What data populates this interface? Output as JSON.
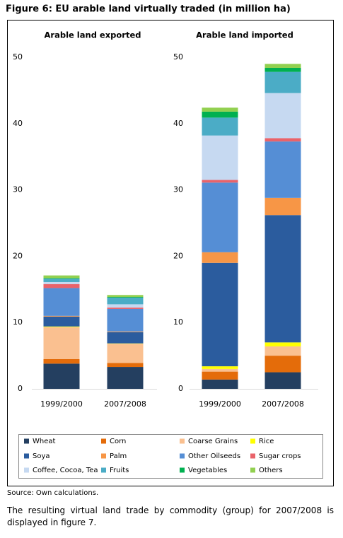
{
  "figure_title": "Figure 6:  EU arable land virtually traded (in million ha)",
  "source": "Source: Own calculations.",
  "body_text": "The resulting virtual land trade by commodity (group) for 2007/2008 is displayed in figure 7.",
  "chart_data": [
    {
      "type": "bar",
      "stacked": true,
      "title": "Arable land exported",
      "categories": [
        "1999/2000",
        "2007/2008"
      ],
      "ylim": [
        0,
        50
      ],
      "yticks": [
        0,
        10,
        20,
        30,
        40,
        50
      ],
      "series": [
        {
          "name": "Wheat",
          "color": "#243f60",
          "values": [
            3.8,
            3.3
          ]
        },
        {
          "name": "Corn",
          "color": "#e46c0a",
          "values": [
            0.7,
            0.6
          ]
        },
        {
          "name": "Coarse Grains",
          "color": "#fac090",
          "values": [
            4.8,
            2.9
          ]
        },
        {
          "name": "Rice",
          "color": "#ffff00",
          "values": [
            0.1,
            0.05
          ]
        },
        {
          "name": "Soya",
          "color": "#2b5c9e",
          "values": [
            1.5,
            1.7
          ]
        },
        {
          "name": "Palm",
          "color": "#f79646",
          "values": [
            0.1,
            0.1
          ]
        },
        {
          "name": "Other Oilseeds",
          "color": "#558ed5",
          "values": [
            4.2,
            3.4
          ]
        },
        {
          "name": "Sugar crops",
          "color": "#e9636a",
          "values": [
            0.6,
            0.2
          ]
        },
        {
          "name": "Coffee, Cocoa, Tea",
          "color": "#c6d9f1",
          "values": [
            0.3,
            0.5
          ]
        },
        {
          "name": "Fruits",
          "color": "#4bacc6",
          "values": [
            0.5,
            1.0
          ]
        },
        {
          "name": "Vegetables",
          "color": "#00b050",
          "values": [
            0.1,
            0.1
          ]
        },
        {
          "name": "Others",
          "color": "#92d050",
          "values": [
            0.4,
            0.3
          ]
        }
      ]
    },
    {
      "type": "bar",
      "stacked": true,
      "title": "Arable land imported",
      "categories": [
        "1999/2000",
        "2007/2008"
      ],
      "ylim": [
        0,
        50
      ],
      "yticks": [
        0,
        10,
        20,
        30,
        40,
        50
      ],
      "series": [
        {
          "name": "Wheat",
          "color": "#243f60",
          "values": [
            1.4,
            2.5
          ]
        },
        {
          "name": "Corn",
          "color": "#e46c0a",
          "values": [
            1.2,
            2.5
          ]
        },
        {
          "name": "Coarse Grains",
          "color": "#fac090",
          "values": [
            0.4,
            1.4
          ]
        },
        {
          "name": "Rice",
          "color": "#ffff00",
          "values": [
            0.4,
            0.6
          ]
        },
        {
          "name": "Soya",
          "color": "#2b5c9e",
          "values": [
            15.6,
            19.2
          ]
        },
        {
          "name": "Palm",
          "color": "#f79646",
          "values": [
            1.6,
            2.6
          ]
        },
        {
          "name": "Other Oilseeds",
          "color": "#558ed5",
          "values": [
            10.5,
            8.5
          ]
        },
        {
          "name": "Sugar crops",
          "color": "#e9636a",
          "values": [
            0.4,
            0.5
          ]
        },
        {
          "name": "Coffee, Cocoa, Tea",
          "color": "#c6d9f1",
          "values": [
            6.7,
            6.8
          ]
        },
        {
          "name": "Fruits",
          "color": "#4bacc6",
          "values": [
            2.7,
            3.2
          ]
        },
        {
          "name": "Vegetables",
          "color": "#00b050",
          "values": [
            0.9,
            0.6
          ]
        },
        {
          "name": "Others",
          "color": "#92d050",
          "values": [
            0.6,
            0.6
          ]
        }
      ]
    }
  ]
}
